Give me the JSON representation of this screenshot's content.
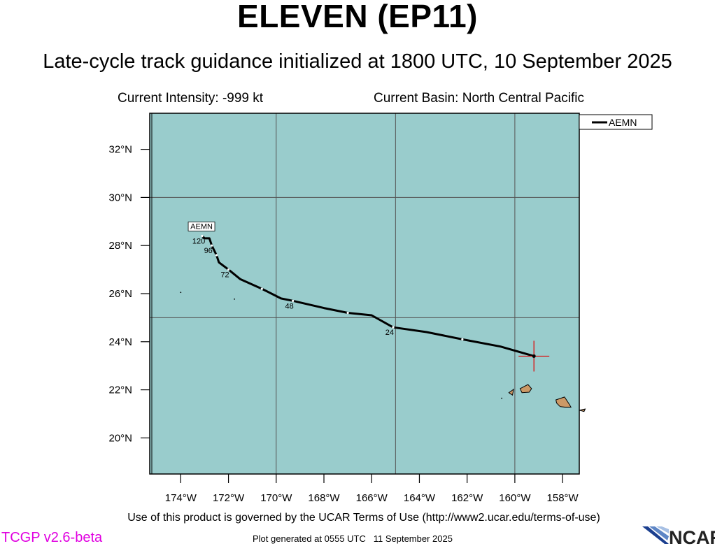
{
  "header": {
    "title": "ELEVEN (EP11)",
    "subtitle": "Late-cycle track guidance initialized at 1800 UTC, 10 September 2025"
  },
  "info": {
    "intensity": "Current Intensity: -999 kt",
    "basin": "Current Basin: North Central Pacific"
  },
  "map": {
    "extent": {
      "lon_min": -175.3,
      "lon_max": -157.3,
      "lat_min": 18.5,
      "lat_max": 33.5
    },
    "lon_ticks": [
      {
        "lon": -174,
        "label": "174°W"
      },
      {
        "lon": -172,
        "label": "172°W"
      },
      {
        "lon": -170,
        "label": "170°W"
      },
      {
        "lon": -168,
        "label": "168°W"
      },
      {
        "lon": -166,
        "label": "166°W"
      },
      {
        "lon": -164,
        "label": "164°W"
      },
      {
        "lon": -162,
        "label": "162°W"
      },
      {
        "lon": -160,
        "label": "160°W"
      },
      {
        "lon": -158,
        "label": "158°W"
      }
    ],
    "lat_ticks": [
      {
        "lat": 20,
        "label": "20°N"
      },
      {
        "lat": 22,
        "label": "22°N"
      },
      {
        "lat": 24,
        "label": "24°N"
      },
      {
        "lat": 26,
        "label": "26°N"
      },
      {
        "lat": 28,
        "label": "28°N"
      },
      {
        "lat": 30,
        "label": "30°N"
      },
      {
        "lat": 32,
        "label": "32°N"
      }
    ],
    "gridlines": {
      "lon": [
        -170,
        -165,
        -160
      ],
      "lat": [
        25,
        30
      ]
    },
    "colors": {
      "ocean": "#99cccc",
      "land": "#cc9966",
      "grid": "#555555",
      "track": "#000000",
      "current_position": "#e00000",
      "version": "#e000e0"
    },
    "legend": {
      "entries": [
        "AEMN"
      ],
      "placement": "top-right outside plot"
    },
    "current_position": {
      "lon": -159.2,
      "lat": 23.4
    },
    "tracks": [
      {
        "name": "AEMN",
        "end_label": "AEMN",
        "points": [
          {
            "lon": -159.2,
            "lat": 23.4
          },
          {
            "lon": -160.6,
            "lat": 23.8
          },
          {
            "lon": -162.2,
            "lat": 24.1,
            "tick": true
          },
          {
            "lon": -163.7,
            "lat": 24.4
          },
          {
            "lon": -165.1,
            "lat": 24.6,
            "tick": true,
            "label": "24"
          },
          {
            "lon": -166.0,
            "lat": 25.1
          },
          {
            "lon": -167.0,
            "lat": 25.2,
            "tick": true
          },
          {
            "lon": -168.0,
            "lat": 25.4
          },
          {
            "lon": -169.3,
            "lat": 25.7,
            "tick": true,
            "label": "48"
          },
          {
            "lon": -169.8,
            "lat": 25.8
          },
          {
            "lon": -170.6,
            "lat": 26.2,
            "tick": true
          },
          {
            "lon": -171.5,
            "lat": 26.6
          },
          {
            "lon": -172.0,
            "lat": 27.0,
            "tick": true,
            "label": "72"
          },
          {
            "lon": -172.4,
            "lat": 27.3
          },
          {
            "lon": -172.5,
            "lat": 27.6,
            "tick": true
          },
          {
            "lon": -172.7,
            "lat": 28.0,
            "tick": true,
            "label": "96"
          },
          {
            "lon": -172.8,
            "lat": 28.3
          },
          {
            "lon": -173.0,
            "lat": 28.3
          },
          {
            "lon": -173.1,
            "lat": 28.4,
            "tick": true,
            "label": "120"
          }
        ]
      }
    ],
    "islands": [
      {
        "name": "oahu",
        "points": [
          [
            -158.28,
            21.58
          ],
          [
            -157.92,
            21.7
          ],
          [
            -157.72,
            21.4
          ],
          [
            -157.65,
            21.28
          ],
          [
            -157.9,
            21.28
          ],
          [
            -158.1,
            21.3
          ],
          [
            -158.25,
            21.45
          ]
        ]
      },
      {
        "name": "kauai",
        "points": [
          [
            -159.78,
            22.05
          ],
          [
            -159.45,
            22.22
          ],
          [
            -159.3,
            22.05
          ],
          [
            -159.4,
            21.9
          ],
          [
            -159.7,
            21.88
          ]
        ]
      },
      {
        "name": "niihau",
        "points": [
          [
            -160.25,
            21.88
          ],
          [
            -160.05,
            22.02
          ],
          [
            -160.1,
            21.78
          ]
        ]
      },
      {
        "name": "molokai",
        "points": [
          [
            -157.3,
            21.15
          ],
          [
            -157.05,
            21.2
          ],
          [
            -157.1,
            21.1
          ]
        ]
      }
    ],
    "specks": [
      {
        "lon": -174.0,
        "lat": 26.05
      },
      {
        "lon": -171.75,
        "lat": 25.77
      },
      {
        "lon": -160.55,
        "lat": 21.65
      }
    ]
  },
  "footer": {
    "terms": "Use of this product is governed by the UCAR Terms of Use (http://www2.ucar.edu/terms-of-use)",
    "generated": "Plot generated at 0555 UTC   11 September 2025",
    "version": "TCGP v2.6-beta",
    "logo": "NCAR"
  }
}
